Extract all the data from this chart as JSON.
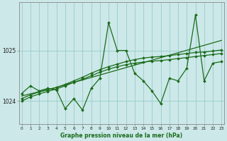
{
  "background_color": "#cce8e8",
  "grid_color": "#99cccc",
  "line_color": "#1a6b1a",
  "title": "Graphe pression niveau de la mer (hPa)",
  "xlabel_ticks": [
    0,
    1,
    2,
    3,
    4,
    5,
    6,
    7,
    8,
    9,
    10,
    11,
    12,
    13,
    14,
    15,
    16,
    17,
    18,
    19,
    20,
    21,
    22,
    23
  ],
  "yticks": [
    1024,
    1025
  ],
  "ylim": [
    1023.55,
    1025.95
  ],
  "xlim": [
    -0.3,
    23.3
  ],
  "series1_x": [
    0,
    1,
    2,
    3,
    4,
    5,
    6,
    7,
    8,
    9,
    10,
    11,
    12,
    13,
    14,
    15,
    16,
    17,
    18,
    19,
    20,
    21,
    22,
    23
  ],
  "series1_y": [
    1024.15,
    1024.3,
    1024.2,
    1024.25,
    1024.22,
    1023.85,
    1024.05,
    1023.82,
    1024.25,
    1024.45,
    1025.55,
    1025.0,
    1025.0,
    1024.55,
    1024.4,
    1024.2,
    1023.95,
    1024.45,
    1024.4,
    1024.65,
    1025.7,
    1024.4,
    1024.75,
    1024.78
  ],
  "series2_x": [
    0,
    1,
    2,
    3,
    4,
    5,
    6,
    7,
    8,
    9,
    10,
    11,
    12,
    13,
    14,
    15,
    16,
    17,
    18,
    19,
    20,
    21,
    22,
    23
  ],
  "series2_y": [
    1024.05,
    1024.12,
    1024.18,
    1024.22,
    1024.27,
    1024.33,
    1024.4,
    1024.47,
    1024.55,
    1024.62,
    1024.68,
    1024.73,
    1024.78,
    1024.82,
    1024.85,
    1024.87,
    1024.88,
    1024.9,
    1024.92,
    1024.94,
    1024.96,
    1024.97,
    1024.99,
    1025.01
  ],
  "series3_x": [
    0,
    1,
    2,
    3,
    4,
    5,
    6,
    7,
    8,
    9,
    10,
    11,
    12,
    13,
    14,
    15,
    16,
    17,
    18,
    19,
    20,
    21,
    22,
    23
  ],
  "series3_y": [
    1024.0,
    1024.08,
    1024.14,
    1024.19,
    1024.24,
    1024.3,
    1024.37,
    1024.43,
    1024.5,
    1024.57,
    1024.63,
    1024.68,
    1024.72,
    1024.75,
    1024.77,
    1024.79,
    1024.8,
    1024.82,
    1024.84,
    1024.86,
    1024.88,
    1024.9,
    1024.92,
    1024.94
  ],
  "series4_x": [
    0,
    4,
    23
  ],
  "series4_y": [
    1024.1,
    1024.27,
    1025.2
  ],
  "lw": 0.9,
  "ms": 2.0
}
